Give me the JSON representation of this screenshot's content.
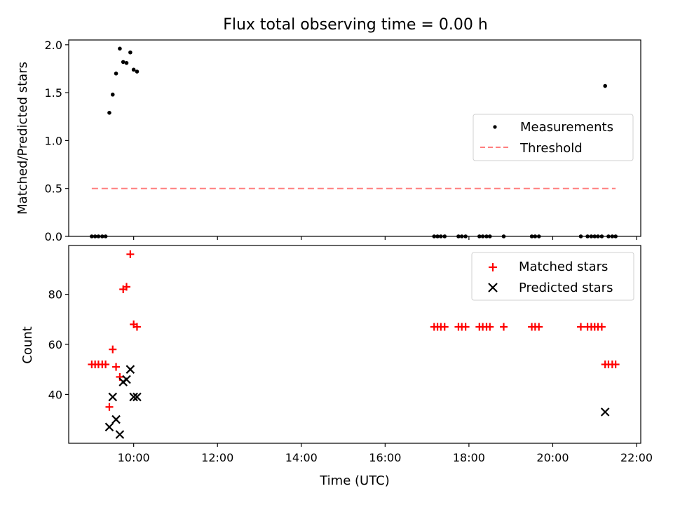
{
  "title": "Flux total observing time = 0.00 h",
  "colors": {
    "measure": "#000000",
    "threshold": "#ff7f7f",
    "matched": "#ff0000",
    "predicted": "#000000"
  },
  "chart_data": [
    {
      "type": "scatter",
      "title": "Flux total observing time = 0.00 h",
      "xlabel": "",
      "ylabel": "Matched/Predicted stars",
      "xlim": [
        8.45,
        22.1
      ],
      "ylim": [
        0.0,
        2.05
      ],
      "x_ticks": [
        10,
        12,
        14,
        16,
        18,
        20,
        22
      ],
      "y_ticks": [
        0.0,
        0.5,
        1.0,
        1.5,
        2.0
      ],
      "y_tick_labels": [
        "0.0",
        "0.5",
        "1.0",
        "1.5",
        "2.0"
      ],
      "legend_position": "right",
      "series": [
        {
          "name": "Measurements",
          "kind": "points",
          "x": [
            9.0,
            9.08,
            9.16,
            9.25,
            9.33,
            9.42,
            9.5,
            9.58,
            9.67,
            9.75,
            9.83,
            9.92,
            10.0,
            10.08,
            17.17,
            17.25,
            17.33,
            17.42,
            17.75,
            17.83,
            17.92,
            18.25,
            18.33,
            18.42,
            18.5,
            18.83,
            19.5,
            19.58,
            19.67,
            20.67,
            20.83,
            20.92,
            21.0,
            21.08,
            21.17,
            21.25,
            21.33,
            21.42,
            21.5
          ],
          "y": [
            0,
            0,
            0,
            0,
            0,
            1.29,
            1.48,
            1.7,
            1.96,
            1.82,
            1.81,
            1.92,
            1.74,
            1.72,
            0,
            0,
            0,
            0,
            0,
            0,
            0,
            0,
            0,
            0,
            0,
            0,
            0,
            0,
            0,
            0,
            0,
            0,
            0,
            0,
            0,
            1.57,
            0,
            0,
            0
          ]
        },
        {
          "name": "Threshold",
          "kind": "dashed-line",
          "x": [
            9.0,
            21.5
          ],
          "y": [
            0.5,
            0.5
          ]
        }
      ]
    },
    {
      "type": "scatter",
      "xlabel": "Time (UTC)",
      "ylabel": "Count",
      "xlim": [
        8.45,
        22.1
      ],
      "ylim": [
        20.5,
        99.5
      ],
      "x_ticks": [
        10,
        12,
        14,
        16,
        18,
        20,
        22
      ],
      "x_tick_labels": [
        "10:00",
        "12:00",
        "14:00",
        "16:00",
        "18:00",
        "20:00",
        "22:00"
      ],
      "y_ticks": [
        40,
        60,
        80
      ],
      "y_tick_labels": [
        "40",
        "60",
        "80"
      ],
      "legend_position": "upper right",
      "series": [
        {
          "name": "Matched stars",
          "marker": "+",
          "x": [
            9.0,
            9.08,
            9.16,
            9.25,
            9.33,
            9.42,
            9.5,
            9.58,
            9.67,
            9.75,
            9.83,
            9.92,
            10.0,
            10.08,
            17.17,
            17.25,
            17.33,
            17.42,
            17.75,
            17.83,
            17.92,
            18.25,
            18.33,
            18.42,
            18.5,
            18.83,
            19.5,
            19.58,
            19.67,
            20.67,
            20.83,
            20.92,
            21.0,
            21.08,
            21.17,
            21.25,
            21.33,
            21.42,
            21.5
          ],
          "y": [
            52,
            52,
            52,
            52,
            52,
            35,
            58,
            51,
            47,
            82,
            83,
            96,
            68,
            67,
            67,
            67,
            67,
            67,
            67,
            67,
            67,
            67,
            67,
            67,
            67,
            67,
            67,
            67,
            67,
            67,
            67,
            67,
            67,
            67,
            67,
            52,
            52,
            52,
            52
          ]
        },
        {
          "name": "Predicted stars",
          "marker": "x",
          "x": [
            9.42,
            9.5,
            9.58,
            9.67,
            9.75,
            9.83,
            9.92,
            10.0,
            10.08,
            21.25
          ],
          "y": [
            27,
            39,
            30,
            24,
            45,
            46,
            50,
            39,
            39,
            33
          ]
        }
      ]
    }
  ]
}
